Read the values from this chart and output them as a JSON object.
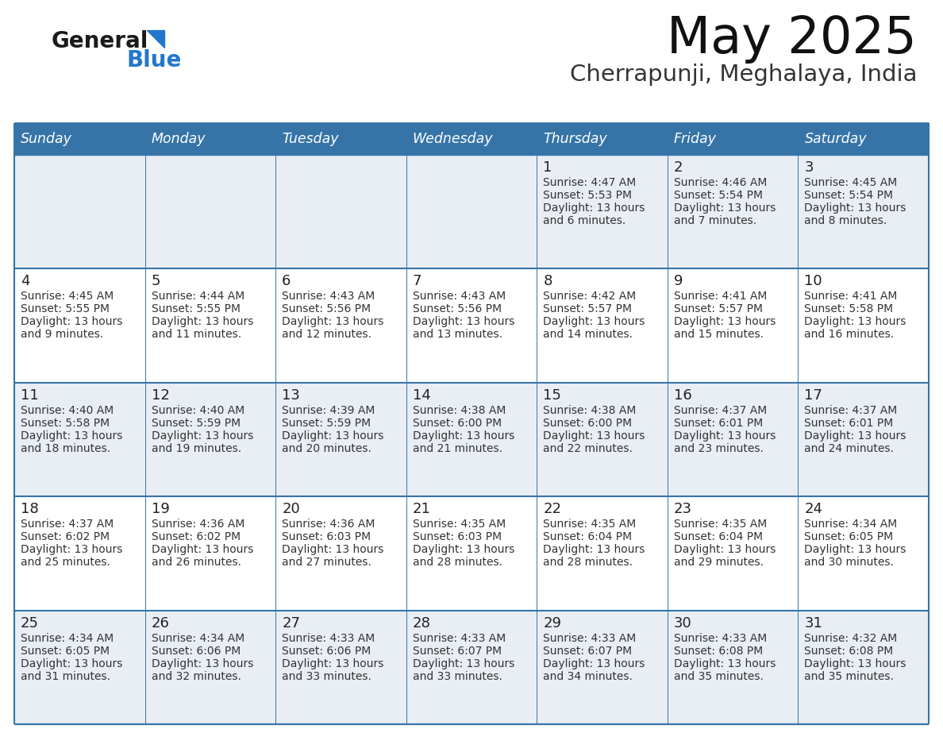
{
  "title": "May 2025",
  "subtitle": "Cherrapunji, Meghalaya, India",
  "days_of_week": [
    "Sunday",
    "Monday",
    "Tuesday",
    "Wednesday",
    "Thursday",
    "Friday",
    "Saturday"
  ],
  "header_bg": "#3674A8",
  "header_text": "#FFFFFF",
  "cell_bg_odd": "#E8EEF4",
  "cell_bg_even": "#FFFFFF",
  "day_num_color": "#222222",
  "text_color": "#333333",
  "grid_line_color": "#3674A8",
  "logo_general_color": "#1a1a1a",
  "logo_blue_color": "#2277CC",
  "calendar_data": [
    [
      {
        "day": 0,
        "sunrise": "",
        "sunset": "",
        "daylight": ""
      },
      {
        "day": 0,
        "sunrise": "",
        "sunset": "",
        "daylight": ""
      },
      {
        "day": 0,
        "sunrise": "",
        "sunset": "",
        "daylight": ""
      },
      {
        "day": 0,
        "sunrise": "",
        "sunset": "",
        "daylight": ""
      },
      {
        "day": 1,
        "sunrise": "4:47 AM",
        "sunset": "5:53 PM",
        "daylight": "13 hours and 6 minutes."
      },
      {
        "day": 2,
        "sunrise": "4:46 AM",
        "sunset": "5:54 PM",
        "daylight": "13 hours and 7 minutes."
      },
      {
        "day": 3,
        "sunrise": "4:45 AM",
        "sunset": "5:54 PM",
        "daylight": "13 hours and 8 minutes."
      }
    ],
    [
      {
        "day": 4,
        "sunrise": "4:45 AM",
        "sunset": "5:55 PM",
        "daylight": "13 hours and 9 minutes."
      },
      {
        "day": 5,
        "sunrise": "4:44 AM",
        "sunset": "5:55 PM",
        "daylight": "13 hours and 11 minutes."
      },
      {
        "day": 6,
        "sunrise": "4:43 AM",
        "sunset": "5:56 PM",
        "daylight": "13 hours and 12 minutes."
      },
      {
        "day": 7,
        "sunrise": "4:43 AM",
        "sunset": "5:56 PM",
        "daylight": "13 hours and 13 minutes."
      },
      {
        "day": 8,
        "sunrise": "4:42 AM",
        "sunset": "5:57 PM",
        "daylight": "13 hours and 14 minutes."
      },
      {
        "day": 9,
        "sunrise": "4:41 AM",
        "sunset": "5:57 PM",
        "daylight": "13 hours and 15 minutes."
      },
      {
        "day": 10,
        "sunrise": "4:41 AM",
        "sunset": "5:58 PM",
        "daylight": "13 hours and 16 minutes."
      }
    ],
    [
      {
        "day": 11,
        "sunrise": "4:40 AM",
        "sunset": "5:58 PM",
        "daylight": "13 hours and 18 minutes."
      },
      {
        "day": 12,
        "sunrise": "4:40 AM",
        "sunset": "5:59 PM",
        "daylight": "13 hours and 19 minutes."
      },
      {
        "day": 13,
        "sunrise": "4:39 AM",
        "sunset": "5:59 PM",
        "daylight": "13 hours and 20 minutes."
      },
      {
        "day": 14,
        "sunrise": "4:38 AM",
        "sunset": "6:00 PM",
        "daylight": "13 hours and 21 minutes."
      },
      {
        "day": 15,
        "sunrise": "4:38 AM",
        "sunset": "6:00 PM",
        "daylight": "13 hours and 22 minutes."
      },
      {
        "day": 16,
        "sunrise": "4:37 AM",
        "sunset": "6:01 PM",
        "daylight": "13 hours and 23 minutes."
      },
      {
        "day": 17,
        "sunrise": "4:37 AM",
        "sunset": "6:01 PM",
        "daylight": "13 hours and 24 minutes."
      }
    ],
    [
      {
        "day": 18,
        "sunrise": "4:37 AM",
        "sunset": "6:02 PM",
        "daylight": "13 hours and 25 minutes."
      },
      {
        "day": 19,
        "sunrise": "4:36 AM",
        "sunset": "6:02 PM",
        "daylight": "13 hours and 26 minutes."
      },
      {
        "day": 20,
        "sunrise": "4:36 AM",
        "sunset": "6:03 PM",
        "daylight": "13 hours and 27 minutes."
      },
      {
        "day": 21,
        "sunrise": "4:35 AM",
        "sunset": "6:03 PM",
        "daylight": "13 hours and 28 minutes."
      },
      {
        "day": 22,
        "sunrise": "4:35 AM",
        "sunset": "6:04 PM",
        "daylight": "13 hours and 28 minutes."
      },
      {
        "day": 23,
        "sunrise": "4:35 AM",
        "sunset": "6:04 PM",
        "daylight": "13 hours and 29 minutes."
      },
      {
        "day": 24,
        "sunrise": "4:34 AM",
        "sunset": "6:05 PM",
        "daylight": "13 hours and 30 minutes."
      }
    ],
    [
      {
        "day": 25,
        "sunrise": "4:34 AM",
        "sunset": "6:05 PM",
        "daylight": "13 hours and 31 minutes."
      },
      {
        "day": 26,
        "sunrise": "4:34 AM",
        "sunset": "6:06 PM",
        "daylight": "13 hours and 32 minutes."
      },
      {
        "day": 27,
        "sunrise": "4:33 AM",
        "sunset": "6:06 PM",
        "daylight": "13 hours and 33 minutes."
      },
      {
        "day": 28,
        "sunrise": "4:33 AM",
        "sunset": "6:07 PM",
        "daylight": "13 hours and 33 minutes."
      },
      {
        "day": 29,
        "sunrise": "4:33 AM",
        "sunset": "6:07 PM",
        "daylight": "13 hours and 34 minutes."
      },
      {
        "day": 30,
        "sunrise": "4:33 AM",
        "sunset": "6:08 PM",
        "daylight": "13 hours and 35 minutes."
      },
      {
        "day": 31,
        "sunrise": "4:32 AM",
        "sunset": "6:08 PM",
        "daylight": "13 hours and 35 minutes."
      }
    ]
  ]
}
